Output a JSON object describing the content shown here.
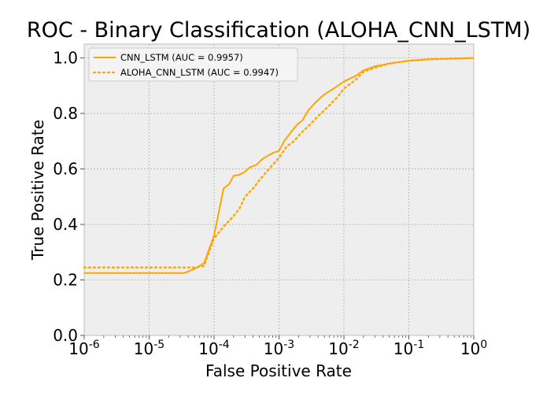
{
  "chart_data": {
    "type": "line",
    "title": "ROC - Binary Classification (ALOHA_CNN_LSTM)",
    "xlabel": "False Positive Rate",
    "ylabel": "True Positive Rate",
    "xscale": "log",
    "xlim": [
      1e-06,
      1
    ],
    "ylim": [
      0.0,
      1.05
    ],
    "grid": true,
    "legend_position": "top-left",
    "background": "#eeeeee",
    "x_ticks": [
      {
        "value": 1e-06,
        "base": "10",
        "exp": "-6"
      },
      {
        "value": 1e-05,
        "base": "10",
        "exp": "-5"
      },
      {
        "value": 0.0001,
        "base": "10",
        "exp": "-4"
      },
      {
        "value": 0.001,
        "base": "10",
        "exp": "-3"
      },
      {
        "value": 0.01,
        "base": "10",
        "exp": "-2"
      },
      {
        "value": 0.1,
        "base": "10",
        "exp": "-1"
      },
      {
        "value": 1,
        "base": "10",
        "exp": "0"
      }
    ],
    "y_ticks": [
      {
        "value": 0.0,
        "label": "0.0"
      },
      {
        "value": 0.2,
        "label": "0.2"
      },
      {
        "value": 0.4,
        "label": "0.4"
      },
      {
        "value": 0.6,
        "label": "0.6"
      },
      {
        "value": 0.8,
        "label": "0.8"
      },
      {
        "value": 1.0,
        "label": "1.0"
      }
    ],
    "series": [
      {
        "name": "CNN_LSTM (AUC = 0.9957)",
        "color": "#ffa500",
        "style": "solid",
        "points": [
          [
            1e-06,
            0.225
          ],
          [
            3.5e-05,
            0.225
          ],
          [
            5e-05,
            0.24
          ],
          [
            7e-05,
            0.26
          ],
          [
            0.0001,
            0.36
          ],
          [
            0.00014,
            0.53
          ],
          [
            0.00017,
            0.545
          ],
          [
            0.0002,
            0.575
          ],
          [
            0.00025,
            0.58
          ],
          [
            0.0003,
            0.59
          ],
          [
            0.00035,
            0.605
          ],
          [
            0.00045,
            0.615
          ],
          [
            0.00055,
            0.635
          ],
          [
            0.0007,
            0.65
          ],
          [
            0.00085,
            0.66
          ],
          [
            0.001,
            0.665
          ],
          [
            0.0012,
            0.7
          ],
          [
            0.0015,
            0.73
          ],
          [
            0.0019,
            0.76
          ],
          [
            0.0023,
            0.775
          ],
          [
            0.0028,
            0.81
          ],
          [
            0.0035,
            0.835
          ],
          [
            0.0045,
            0.86
          ],
          [
            0.0055,
            0.875
          ],
          [
            0.007,
            0.89
          ],
          [
            0.01,
            0.915
          ],
          [
            0.015,
            0.935
          ],
          [
            0.02,
            0.955
          ],
          [
            0.03,
            0.97
          ],
          [
            0.05,
            0.98
          ],
          [
            0.1,
            0.99
          ],
          [
            0.2,
            0.995
          ],
          [
            0.5,
            0.998
          ],
          [
            1,
            1.0
          ]
        ]
      },
      {
        "name": "ALOHA_CNN_LSTM (AUC = 0.9947)",
        "color": "#ffa500",
        "style": "dotted",
        "points": [
          [
            1e-06,
            0.245
          ],
          [
            5e-05,
            0.245
          ],
          [
            7e-05,
            0.25
          ],
          [
            0.0001,
            0.35
          ],
          [
            0.00015,
            0.4
          ],
          [
            0.0002,
            0.43
          ],
          [
            0.00025,
            0.46
          ],
          [
            0.0003,
            0.5
          ],
          [
            0.0004,
            0.53
          ],
          [
            0.0005,
            0.56
          ],
          [
            0.0007,
            0.6
          ],
          [
            0.001,
            0.64
          ],
          [
            0.0013,
            0.68
          ],
          [
            0.0017,
            0.7
          ],
          [
            0.0022,
            0.73
          ],
          [
            0.003,
            0.76
          ],
          [
            0.004,
            0.79
          ],
          [
            0.006,
            0.83
          ],
          [
            0.008,
            0.86
          ],
          [
            0.01,
            0.89
          ],
          [
            0.015,
            0.92
          ],
          [
            0.02,
            0.95
          ],
          [
            0.03,
            0.965
          ],
          [
            0.05,
            0.98
          ],
          [
            0.1,
            0.99
          ],
          [
            0.2,
            0.995
          ],
          [
            1,
            1.0
          ]
        ]
      }
    ]
  }
}
